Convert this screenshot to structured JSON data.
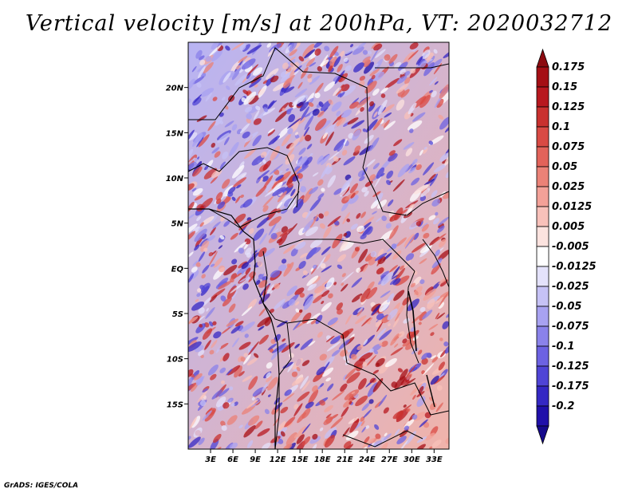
{
  "title": "Vertical velocity [m/s] at 200hPa, VT: 2020032712",
  "credit": "GrADS: IGES/COLA",
  "map": {
    "type": "filled-contour-map",
    "variable": "vertical velocity",
    "units": "m/s",
    "level": "200hPa",
    "valid_time": "2020032712",
    "lon_range": [
      0,
      35
    ],
    "lat_range": [
      -20,
      25
    ],
    "lon_ticks": [
      {
        "value": 3,
        "label": "3E"
      },
      {
        "value": 6,
        "label": "6E"
      },
      {
        "value": 9,
        "label": "9E"
      },
      {
        "value": 12,
        "label": "12E"
      },
      {
        "value": 15,
        "label": "15E"
      },
      {
        "value": 18,
        "label": "18E"
      },
      {
        "value": 21,
        "label": "21E"
      },
      {
        "value": 24,
        "label": "24E"
      },
      {
        "value": 27,
        "label": "27E"
      },
      {
        "value": 30,
        "label": "30E"
      },
      {
        "value": 33,
        "label": "33E"
      }
    ],
    "lat_ticks": [
      {
        "value": 20,
        "label": "20N"
      },
      {
        "value": 15,
        "label": "15N"
      },
      {
        "value": 10,
        "label": "10N"
      },
      {
        "value": 5,
        "label": "5N"
      },
      {
        "value": 0,
        "label": "EQ"
      },
      {
        "value": -5,
        "label": "5S"
      },
      {
        "value": -10,
        "label": "10S"
      },
      {
        "value": -15,
        "label": "15S"
      }
    ]
  },
  "colorbar": {
    "levels": [
      {
        "label": "0.175",
        "color": "#a50f15"
      },
      {
        "label": "0.15",
        "color": "#b8181f"
      },
      {
        "label": "0.125",
        "color": "#c9312f"
      },
      {
        "label": "0.1",
        "color": "#d94a44"
      },
      {
        "label": "0.075",
        "color": "#e2635a"
      },
      {
        "label": "0.05",
        "color": "#eb8277"
      },
      {
        "label": "0.025",
        "color": "#f3a198"
      },
      {
        "label": "0.0125",
        "color": "#f8c1ba"
      },
      {
        "label": "0.005",
        "color": "#fce3df"
      },
      {
        "label": "-0.005",
        "color": "#ffffff"
      },
      {
        "label": "-0.0125",
        "color": "#e4e2fb"
      },
      {
        "label": "-0.025",
        "color": "#c6c2f6"
      },
      {
        "label": "-0.05",
        "color": "#a8a2f1"
      },
      {
        "label": "-0.075",
        "color": "#8a82ea"
      },
      {
        "label": "-0.1",
        "color": "#6c62e2"
      },
      {
        "label": "-0.125",
        "color": "#4f44d6"
      },
      {
        "label": "-0.175",
        "color": "#3528c4"
      },
      {
        "label": "-0.2",
        "color": "#2010aa"
      }
    ],
    "top_extension_color": "#8c0b10",
    "bottom_extension_color": "#160a8c"
  }
}
